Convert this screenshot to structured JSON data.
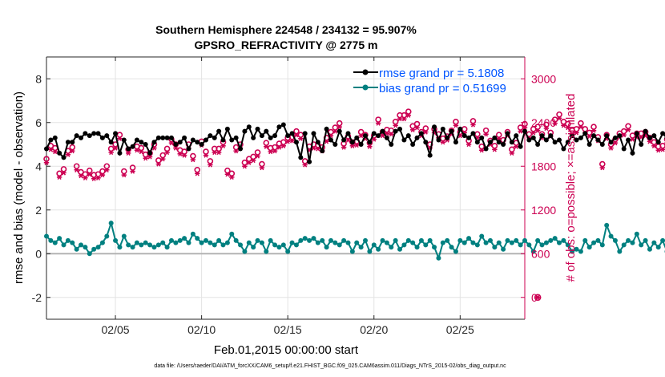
{
  "chart_data": {
    "type": "line",
    "title_line1": "Southern Hemisphere 224548 / 234132 = 95.907%",
    "title_line2": "GPSRO_REFRACTIVITY @ 2775 m",
    "xlabel": "Feb.01,2015 00:00:00 start",
    "ylabel_left": "rmse and bias (model - observation)",
    "ylabel_right": "# of obs: o=possible; ×=assimilated",
    "footer": "data file: /Users/raeder/DAI/ATM_forcXX/CAM6_setup/f.e21.FHIST_BGC.f09_025.CAM6assim.011/Diags_NTrS_2015-02/obs_diag_output.nc",
    "x_range_days": [
      1,
      28.75
    ],
    "x_ticks": [
      {
        "day": 5,
        "label": "02/05"
      },
      {
        "day": 10,
        "label": "02/10"
      },
      {
        "day": 15,
        "label": "02/15"
      },
      {
        "day": 20,
        "label": "02/20"
      },
      {
        "day": 25,
        "label": "02/25"
      }
    ],
    "y_left_range": [
      -3,
      9
    ],
    "y_left_ticks": [
      {
        "value": 8,
        "label": "8"
      },
      {
        "value": 6,
        "label": "6"
      },
      {
        "value": 4,
        "label": "4"
      },
      {
        "value": 2,
        "label": "2"
      },
      {
        "value": 0,
        "label": "0"
      },
      {
        "value": -2,
        "label": "-2"
      }
    ],
    "y_right_range": [
      -300,
      3300
    ],
    "y_right_ticks": [
      {
        "value": 3000,
        "label": "3000"
      },
      {
        "value": 2400,
        "label": "2400"
      },
      {
        "value": 1800,
        "label": "1800"
      },
      {
        "value": 1200,
        "label": "1200"
      },
      {
        "value": 600,
        "label": "600"
      },
      {
        "value": 0,
        "label": "0"
      }
    ],
    "grid": true,
    "legend_position": "top-right",
    "colors": {
      "rmse": "#000000",
      "bias": "#008080",
      "obs": "#cc0052",
      "legend_text": "#0055ff",
      "zero_line": "#b3b3b3"
    },
    "series": [
      {
        "name": "rmse grand pr = 5.1808",
        "key": "rmse",
        "x_start_day": 1,
        "x_step_days": 0.25,
        "values": [
          4.8,
          5.2,
          5.3,
          4.6,
          4.4,
          5.1,
          5.1,
          5.4,
          5.3,
          5.5,
          5.4,
          5.5,
          5.5,
          5.3,
          5.4,
          5.1,
          5.5,
          4.6,
          5.2,
          4.8,
          4.9,
          5.2,
          5.1,
          5.0,
          4.6,
          5.1,
          5.3,
          5.3,
          5.3,
          5.3,
          5.0,
          5.1,
          5.3,
          4.8,
          5.2,
          5.1,
          5.0,
          5.2,
          5.4,
          5.3,
          5.6,
          5.2,
          5.7,
          5.2,
          5.3,
          4.8,
          5.6,
          5.8,
          5.3,
          5.7,
          5.4,
          5.6,
          5.3,
          5.4,
          5.8,
          5.9,
          5.4,
          5.5,
          5.1,
          4.4,
          5.5,
          4.2,
          5.5,
          5.1,
          4.7,
          5.7,
          5.2,
          5.0,
          5.6,
          5.2,
          5.5,
          5.1,
          5.3,
          5.0,
          5.4,
          5.1,
          5.5,
          5.4,
          5.6,
          5.3,
          5.0,
          5.6,
          5.7,
          5.2,
          5.4,
          5.0,
          5.3,
          5.5,
          5.1,
          4.5,
          5.8,
          5.2,
          5.7,
          5.3,
          5.6,
          5.1,
          5.7,
          5.4,
          5.3,
          5.5,
          5.1,
          5.3,
          4.8,
          5.1,
          5.3,
          5.1,
          5.0,
          5.5,
          5.1,
          5.4,
          4.9,
          5.6,
          5.2,
          5.3,
          5.0,
          5.4,
          5.2,
          5.4,
          5.1,
          5.2,
          4.8,
          5.1,
          5.4,
          5.2,
          5.3,
          5.5,
          5.0,
          5.4,
          5.2,
          5.0,
          5.4,
          5.1,
          5.3,
          5.4,
          4.8,
          5.2,
          4.6,
          5.5,
          5.0,
          5.6,
          5.3,
          5.4,
          5.1,
          5.5,
          5.3,
          4.8,
          5.4,
          5.1,
          5.4,
          5.2,
          5.2,
          5.3,
          5.1,
          5.5,
          5.2,
          5.4,
          5.0,
          5.6,
          5.3,
          5.4,
          4.7,
          5.5,
          5.2,
          5.5,
          5.2,
          5.1,
          5.3,
          4.9,
          5.3,
          5.6,
          5.2,
          5.4,
          5.0,
          5.7,
          5.9,
          5.3,
          5.6,
          5.0,
          6.0,
          5.4,
          5.4,
          5.0,
          5.2,
          5.2,
          4.8,
          5.1,
          5.3,
          5.5,
          5.1,
          5.4,
          5.8,
          5.2,
          5.5,
          5.1,
          5.5,
          4.8,
          5.3,
          4.9,
          5.3,
          5.0,
          4.7,
          4.9,
          4.6,
          4.9,
          4.7,
          4.4,
          4.9,
          4.5,
          4.2,
          4.6,
          4.5
        ]
      },
      {
        "name": "bias grand pr = 0.51699",
        "key": "bias",
        "x_start_day": 1,
        "x_step_days": 0.25,
        "values": [
          0.8,
          0.6,
          0.5,
          0.7,
          0.4,
          0.6,
          0.5,
          0.2,
          0.4,
          0.3,
          0.0,
          0.2,
          0.3,
          0.5,
          0.8,
          1.4,
          0.6,
          0.3,
          0.8,
          0.4,
          0.3,
          0.5,
          0.4,
          0.5,
          0.4,
          0.3,
          0.4,
          0.5,
          0.3,
          0.6,
          0.5,
          0.6,
          0.7,
          0.5,
          0.9,
          0.7,
          0.5,
          0.6,
          0.5,
          0.4,
          0.6,
          0.4,
          0.5,
          0.9,
          0.6,
          0.4,
          0.1,
          0.5,
          0.3,
          0.6,
          0.5,
          0.1,
          0.6,
          0.4,
          0.3,
          0.4,
          0.1,
          0.5,
          0.4,
          0.6,
          0.7,
          0.6,
          0.7,
          0.5,
          0.6,
          0.3,
          0.6,
          0.5,
          0.4,
          0.6,
          0.5,
          0.1,
          0.5,
          0.3,
          0.6,
          0.1,
          0.4,
          0.2,
          0.6,
          0.5,
          0.3,
          0.6,
          0.2,
          0.4,
          0.6,
          0.5,
          0.3,
          0.6,
          0.4,
          0.6,
          0.3,
          -0.2,
          0.5,
          0.6,
          0.3,
          0.1,
          0.6,
          0.5,
          0.7,
          0.5,
          0.4,
          0.8,
          0.5,
          0.6,
          0.3,
          0.5,
          0.2,
          0.6,
          0.5,
          0.6,
          0.4,
          0.6,
          0.4,
          0.1,
          0.6,
          0.4,
          0.5,
          0.6,
          0.7,
          0.5,
          0.6,
          0.4,
          0.1,
          0.2,
          0.1,
          0.6,
          0.3,
          0.5,
          0.6,
          0.4,
          1.3,
          0.8,
          0.6,
          0.1,
          0.4,
          0.6,
          0.5,
          0.9,
          0.4,
          0.6,
          0.2,
          0.5,
          0.3,
          0.6,
          0.1,
          0.6,
          0.9,
          0.3,
          0.6,
          0.1,
          0.5,
          0.2,
          0.6,
          1.0,
          0.5,
          0.4,
          0.3,
          0.5,
          0.1,
          0.5,
          0.3,
          0.7,
          0.6,
          0.7,
          0.5,
          0.8,
          0.4,
          0.6,
          0.5,
          0.6,
          0.5,
          0.4,
          0.7,
          0.5,
          0.6,
          0.6,
          0.7,
          0.6,
          0.8,
          0.7,
          0.9,
          0.9,
          0.7,
          0.8,
          1.2,
          0.5,
          0.6,
          0.6,
          0.7,
          0.5,
          0.4,
          0.7,
          0.8,
          0.6,
          0.7,
          0.8,
          0.6,
          0.4,
          0.8,
          0.7,
          0.4,
          0.5,
          0.6,
          0.8,
          0.8,
          0.7,
          0.7,
          0.5,
          0.7,
          0.8,
          0.6,
          0.6,
          0.7
        ]
      },
      {
        "name": "obs possible",
        "key": "obs_possible",
        "x_start_day": 1,
        "x_step_days": 0.25,
        "values": [
          1900,
          2080,
          2050,
          1700,
          1760,
          2010,
          2060,
          1800,
          1720,
          1690,
          1740,
          1680,
          1690,
          1730,
          1800,
          2040,
          2100,
          2230,
          1730,
          2030,
          1780,
          2070,
          2050,
          1960,
          1980,
          2100,
          1880,
          1950,
          2040,
          2170,
          2100,
          2020,
          2000,
          2100,
          1940,
          1750,
          2140,
          2000,
          1870,
          2040,
          2040,
          2130,
          1740,
          1700,
          2060,
          2100,
          1850,
          1900,
          1930,
          1990,
          1830,
          2120,
          2050,
          2060,
          2110,
          2130,
          2190,
          2200,
          2280,
          2230,
          1870,
          2070,
          2100,
          2090,
          2060,
          2190,
          2270,
          2330,
          2390,
          2110,
          2210,
          2130,
          2140,
          2270,
          2230,
          2120,
          2220,
          2440,
          2270,
          2300,
          2290,
          2410,
          2500,
          2500,
          2550,
          2350,
          2380,
          2270,
          2320,
          2100,
          2310,
          2240,
          2180,
          2210,
          2290,
          2410,
          2270,
          2310,
          2150,
          2420,
          2240,
          2070,
          2290,
          2150,
          2080,
          2230,
          2160,
          2270,
          2030,
          2120,
          2330,
          2380,
          2240,
          2310,
          2340,
          2240,
          2370,
          2260,
          2440,
          2510,
          2410,
          2380,
          2290,
          2310,
          2390,
          2310,
          2260,
          2340,
          2200,
          1830,
          2230,
          2100,
          2170,
          2250,
          2280,
          2350,
          2220,
          2250,
          2250,
          2270,
          2190,
          2130,
          2070,
          2080,
          2170,
          2230,
          2110,
          1690,
          2090,
          2270,
          2220,
          2260,
          2140,
          2130,
          1990,
          1880,
          2080,
          1820,
          2210,
          2140,
          2100,
          2080,
          2140,
          2380,
          2300,
          2290,
          2280,
          2170,
          2190,
          2220,
          2360,
          2300,
          2270,
          2410,
          2350,
          2240,
          2120,
          2280,
          2400,
          2380,
          2230,
          2170,
          2110,
          2210,
          2020,
          2150,
          2310,
          2040,
          2170,
          2270,
          2120,
          2030,
          2130,
          2090,
          2240,
          2020,
          2190,
          2080,
          2140,
          2080,
          2120,
          2170,
          2080,
          2040,
          2040,
          2030,
          2070,
          2020,
          2070,
          2080,
          2070
        ]
      },
      {
        "name": "obs assimilated",
        "key": "obs_assimilated",
        "x_start_day": 1,
        "x_step_days": 0.25,
        "values": [
          1850,
          2030,
          2000,
          1650,
          1710,
          1960,
          2010,
          1750,
          1670,
          1640,
          1690,
          1630,
          1640,
          1680,
          1750,
          1990,
          2050,
          2180,
          1680,
          1980,
          1730,
          2020,
          2000,
          1910,
          1930,
          2050,
          1830,
          1900,
          1990,
          2120,
          2050,
          1970,
          1950,
          2050,
          1890,
          1700,
          2090,
          1950,
          1820,
          1990,
          1990,
          2080,
          1690,
          1650,
          2010,
          2050,
          1800,
          1850,
          1880,
          1940,
          1780,
          2070,
          2000,
          2010,
          2060,
          2080,
          2140,
          2150,
          2230,
          2180,
          1820,
          2020,
          2050,
          2040,
          2010,
          2140,
          2220,
          2280,
          2340,
          2060,
          2160,
          2080,
          2090,
          2220,
          2180,
          2070,
          2170,
          2390,
          2220,
          2250,
          2240,
          2360,
          2450,
          2450,
          2500,
          2300,
          2330,
          2220,
          2270,
          2050,
          2260,
          2190,
          2130,
          2160,
          2240,
          2360,
          2220,
          2260,
          2100,
          2370,
          2190,
          2020,
          2240,
          2100,
          2030,
          2180,
          2110,
          2220,
          1980,
          2070,
          2280,
          2330,
          2190,
          2260,
          2290,
          2190,
          2320,
          2210,
          2390,
          2460,
          2360,
          2330,
          2240,
          2260,
          2340,
          2260,
          2210,
          2290,
          2150,
          1780,
          2180,
          2050,
          2120,
          2200,
          2230,
          2300,
          2170,
          2200,
          2200,
          2220,
          2140,
          2080,
          2020,
          2030,
          2120,
          2180,
          2060,
          1640,
          2040,
          2220,
          2170,
          2210,
          2090,
          2080,
          1940,
          1830,
          2030,
          1770,
          2160,
          2090,
          2050,
          2030,
          2090,
          2330,
          2250,
          2240,
          2230,
          2120,
          2140,
          2170,
          2310,
          2250,
          2220,
          2360,
          2300,
          2190,
          2070,
          2230,
          2350,
          2330,
          2180,
          2120,
          2060,
          2160,
          1970,
          2100,
          2260,
          1990,
          2120,
          2220,
          2070,
          1980,
          2080,
          2040,
          2190,
          1970,
          2140,
          2030,
          2090,
          2030,
          2070,
          2120,
          2030,
          1990,
          1990,
          1980,
          2020,
          1970,
          2020,
          2030,
          2020
        ]
      }
    ],
    "point_annotations": [
      {
        "label": "total obs at zero",
        "possible": 0,
        "assimilated": 0,
        "x_day": 29.5
      }
    ]
  }
}
